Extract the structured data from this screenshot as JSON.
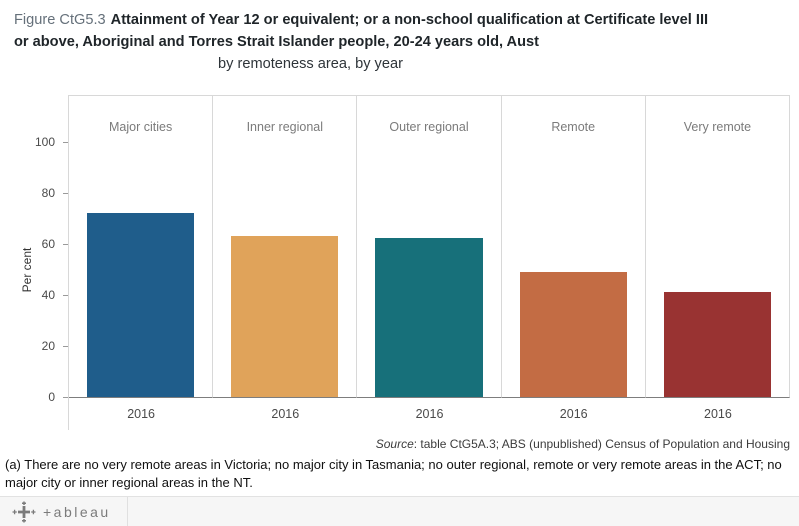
{
  "title": {
    "prefix": "Figure CtG5.3",
    "line1": "Attainment of Year 12 or equivalent; or a non-school qualification at Certificate level III",
    "line2": "or above, Aboriginal and Torres Strait Islander people, 20-24 years old, Aust",
    "subtitle": "by remoteness area, by year"
  },
  "chart_data": {
    "type": "bar",
    "panels": [
      "Major cities",
      "Inner regional",
      "Outer regional",
      "Remote",
      "Very remote"
    ],
    "categories": [
      "2016",
      "2016",
      "2016",
      "2016",
      "2016"
    ],
    "values": [
      72,
      63,
      62.5,
      49,
      41
    ],
    "colors": [
      "#1f5d8b",
      "#e0a35a",
      "#17707a",
      "#c36c44",
      "#993332"
    ],
    "ylabel": "Per cent",
    "yticks": [
      0,
      20,
      40,
      60,
      80,
      100
    ],
    "ylim": [
      0,
      100
    ],
    "grid": "off",
    "legend": "none"
  },
  "source": {
    "label": "Source",
    "text": ": table CtG5A.3; ABS (unpublished) Census of Population and Housing"
  },
  "footnote": "(a) There are no very remote areas in Victoria; no major city in Tasmania; no outer regional, remote or very remote areas in the ACT; no major city or inner regional areas in the NT.",
  "footer": {
    "logo_text": "+ableau"
  }
}
